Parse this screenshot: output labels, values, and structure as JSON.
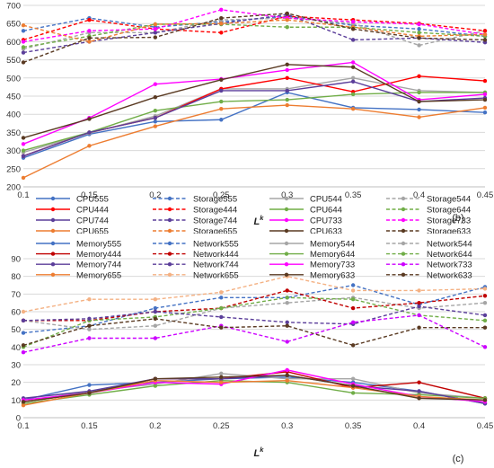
{
  "chart_data": [
    {
      "type": "line",
      "panel_label": "(b)",
      "xlabel": "L",
      "xlabel_sup": "k",
      "x": [
        0.1,
        0.15,
        0.2,
        0.25,
        0.3,
        0.35,
        0.4,
        0.45
      ],
      "x_ticks": [
        "0.1",
        "0.15",
        "0.2",
        "0.25",
        "0.3",
        "0.35",
        "0.4",
        "0.45"
      ],
      "ylim": [
        200,
        700
      ],
      "y_ticks": [
        "200",
        "250",
        "300",
        "350",
        "400",
        "450",
        "500",
        "550",
        "600",
        "650",
        "700"
      ],
      "grid": true,
      "legend_position": "bottom",
      "series": [
        {
          "name": "CPU555",
          "color": "#4472c4",
          "dashed": false,
          "values": [
            280,
            345,
            380,
            385,
            460,
            418,
            413,
            405
          ]
        },
        {
          "name": "Storage555",
          "color": "#4472c4",
          "dashed": true,
          "values": [
            630,
            665,
            640,
            655,
            670,
            645,
            635,
            615
          ]
        },
        {
          "name": "CPU544",
          "color": "#a5a5a5",
          "dashed": false,
          "values": [
            295,
            348,
            395,
            470,
            470,
            500,
            465,
            460
          ]
        },
        {
          "name": "Storage544",
          "color": "#a5a5a5",
          "dashed": true,
          "values": [
            580,
            625,
            625,
            660,
            665,
            650,
            590,
            630
          ]
        },
        {
          "name": "CPU444",
          "color": "#ff0000",
          "dashed": false,
          "values": [
            285,
            350,
            390,
            470,
            500,
            462,
            505,
            492
          ]
        },
        {
          "name": "Storage444",
          "color": "#ff0000",
          "dashed": true,
          "values": [
            605,
            660,
            635,
            625,
            670,
            660,
            650,
            630
          ]
        },
        {
          "name": "CPU644",
          "color": "#70ad47",
          "dashed": false,
          "values": [
            300,
            350,
            410,
            435,
            440,
            455,
            460,
            460
          ]
        },
        {
          "name": "Storage644",
          "color": "#70ad47",
          "dashed": true,
          "values": [
            585,
            615,
            648,
            648,
            640,
            640,
            625,
            615
          ]
        },
        {
          "name": "CPU744",
          "color": "#5b3e9a",
          "dashed": false,
          "values": [
            285,
            350,
            390,
            465,
            465,
            490,
            435,
            445
          ]
        },
        {
          "name": "Storage744",
          "color": "#5b3e9a",
          "dashed": true,
          "values": [
            570,
            600,
            625,
            650,
            675,
            605,
            610,
            598
          ]
        },
        {
          "name": "CPU733",
          "color": "#ff00ff",
          "dashed": false,
          "values": [
            318,
            390,
            483,
            497,
            522,
            543,
            440,
            455
          ]
        },
        {
          "name": "Storage733",
          "color": "#ff00ff",
          "dashed": true,
          "values": [
            600,
            630,
            635,
            688,
            665,
            655,
            648,
            620
          ]
        },
        {
          "name": "CPU655",
          "color": "#ed7d31",
          "dashed": false,
          "values": [
            225,
            313,
            367,
            415,
            425,
            415,
            392,
            418
          ]
        },
        {
          "name": "Storage655",
          "color": "#ed7d31",
          "dashed": true,
          "values": [
            645,
            600,
            648,
            650,
            660,
            640,
            615,
            620
          ]
        },
        {
          "name": "CPU633",
          "color": "#5a3a22",
          "dashed": false,
          "values": [
            335,
            387,
            447,
            495,
            537,
            530,
            435,
            440
          ]
        },
        {
          "name": "Storage633",
          "color": "#5a3a22",
          "dashed": true,
          "values": [
            543,
            610,
            612,
            665,
            678,
            635,
            610,
            605
          ]
        }
      ]
    },
    {
      "type": "line",
      "panel_label": "(c)",
      "xlabel": "L",
      "xlabel_sup": "k",
      "x": [
        0.1,
        0.15,
        0.2,
        0.25,
        0.3,
        0.35,
        0.4,
        0.45
      ],
      "x_ticks": [
        "0.1",
        "0.15",
        "0.2",
        "0.25",
        "0.3",
        "0.35",
        "0.4",
        "0.45"
      ],
      "ylim": [
        0,
        90
      ],
      "y_ticks": [
        "0",
        "10",
        "20",
        "30",
        "40",
        "50",
        "60",
        "70",
        "80",
        "90"
      ],
      "grid": true,
      "legend_position": "top",
      "series": [
        {
          "name": "Memory555",
          "color": "#4472c4",
          "dashed": false,
          "values": [
            10,
            18.5,
            20,
            22,
            23,
            20,
            15,
            8
          ]
        },
        {
          "name": "Network555",
          "color": "#4472c4",
          "dashed": true,
          "values": [
            48,
            52,
            62,
            68,
            68,
            75,
            64,
            74
          ]
        },
        {
          "name": "Memory544",
          "color": "#a5a5a5",
          "dashed": false,
          "values": [
            9,
            15,
            19,
            25,
            22,
            22,
            14,
            11
          ]
        },
        {
          "name": "Network544",
          "color": "#a5a5a5",
          "dashed": true,
          "values": [
            55,
            50,
            52,
            62,
            65,
            68,
            62,
            65
          ]
        },
        {
          "name": "Memory444",
          "color": "#c00000",
          "dashed": false,
          "values": [
            9,
            14,
            22,
            22,
            26,
            17,
            20,
            11
          ]
        },
        {
          "name": "Network444",
          "color": "#c00000",
          "dashed": true,
          "values": [
            55,
            55,
            60,
            62,
            72,
            62,
            65,
            69
          ]
        },
        {
          "name": "Memory644",
          "color": "#70ad47",
          "dashed": false,
          "values": [
            8,
            13,
            18,
            21,
            20,
            14,
            13,
            11
          ]
        },
        {
          "name": "Network644",
          "color": "#70ad47",
          "dashed": true,
          "values": [
            40,
            55,
            57,
            62,
            68,
            67,
            58,
            55
          ]
        },
        {
          "name": "Memory744",
          "color": "#5b3e9a",
          "dashed": false,
          "values": [
            11,
            15,
            22,
            22,
            24,
            18,
            15,
            8
          ]
        },
        {
          "name": "Network744",
          "color": "#5b3e9a",
          "dashed": true,
          "values": [
            55,
            56,
            60,
            57,
            54,
            53,
            63,
            58
          ]
        },
        {
          "name": "Memory733",
          "color": "#ff00ff",
          "dashed": false,
          "values": [
            10,
            14,
            20,
            19,
            27,
            19,
            12,
            9
          ]
        },
        {
          "name": "Network733",
          "color": "#cc00ff",
          "dashed": true,
          "values": [
            37,
            45,
            45,
            52,
            43,
            54,
            58,
            40
          ]
        },
        {
          "name": "Memory655",
          "color": "#ed7d31",
          "dashed": false,
          "values": [
            7,
            14,
            21,
            20,
            21,
            17,
            12,
            10
          ]
        },
        {
          "name": "Network655",
          "color": "#f4b183",
          "dashed": true,
          "values": [
            60,
            67,
            67,
            71,
            80,
            72,
            72,
            73
          ]
        },
        {
          "name": "Memory633",
          "color": "#5a3a22",
          "dashed": false,
          "values": [
            9,
            14,
            22,
            23,
            24,
            18,
            11,
            10
          ]
        },
        {
          "name": "Network633",
          "color": "#5a3a22",
          "dashed": true,
          "values": [
            41,
            52,
            56,
            51,
            52,
            41,
            51,
            51
          ]
        }
      ]
    }
  ]
}
